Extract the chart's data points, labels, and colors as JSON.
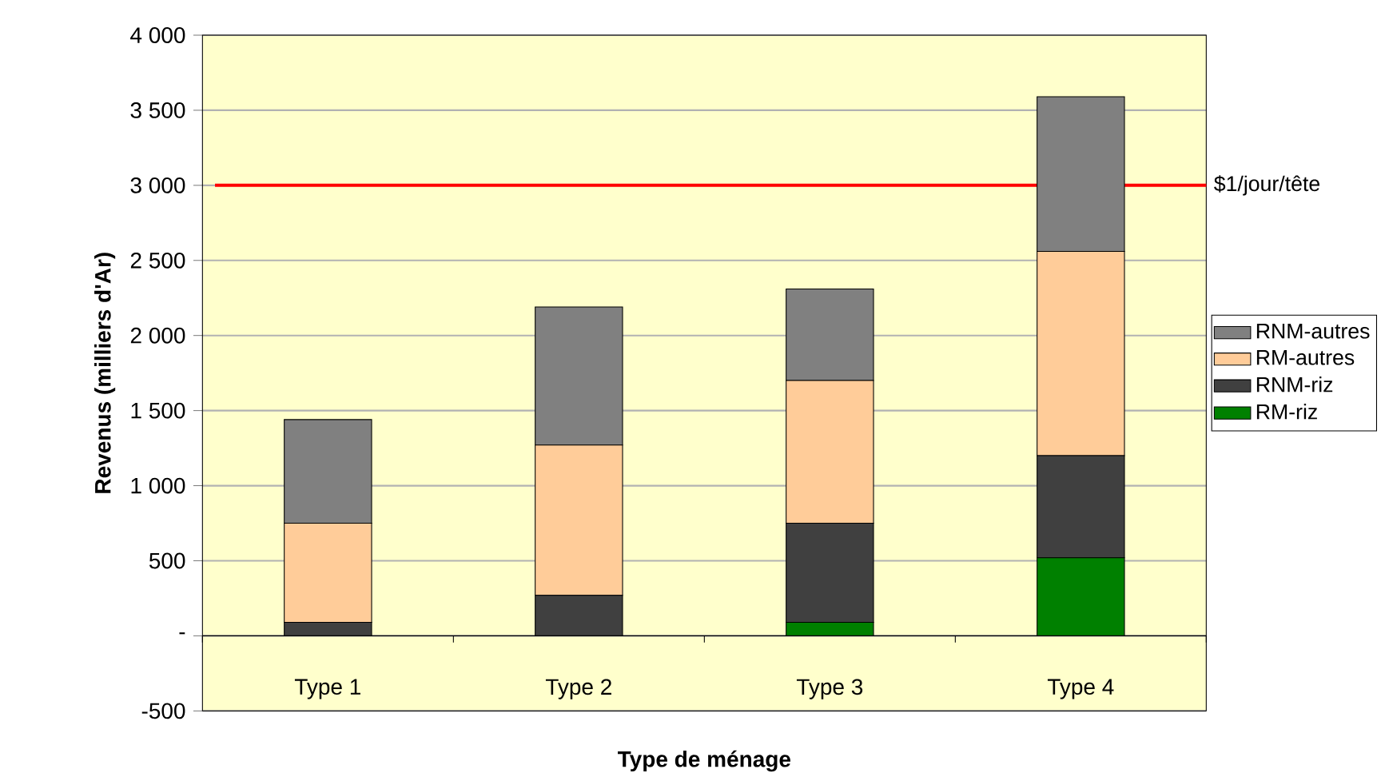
{
  "chart_data": {
    "type": "bar",
    "stacked": true,
    "xlabel": "Type de ménage",
    "ylabel": "Revenus (milliers d'Ar)",
    "categories": [
      "Type 1",
      "Type 2",
      "Type 3",
      "Type 4"
    ],
    "series": [
      {
        "name": "RM-riz",
        "color": "#008000",
        "values": [
          0,
          0,
          90,
          520
        ]
      },
      {
        "name": "RNM-riz",
        "color": "#404040",
        "values": [
          90,
          270,
          660,
          680
        ]
      },
      {
        "name": "RM-autres",
        "color": "#ffcc99",
        "values": [
          660,
          1000,
          950,
          1360
        ]
      },
      {
        "name": "RNM-autres",
        "color": "#808080",
        "values": [
          690,
          920,
          610,
          1030
        ]
      }
    ],
    "ylim": [
      -500,
      4000
    ],
    "yticks": [
      {
        "value": -500,
        "label": "-500"
      },
      {
        "value": 0,
        "label": "-"
      },
      {
        "value": 500,
        "label": "500"
      },
      {
        "value": 1000,
        "label": "1 000"
      },
      {
        "value": 1500,
        "label": "1 500"
      },
      {
        "value": 2000,
        "label": "2 000"
      },
      {
        "value": 2500,
        "label": "2 500"
      },
      {
        "value": 3000,
        "label": "3 000"
      },
      {
        "value": 3500,
        "label": "3 500"
      },
      {
        "value": 4000,
        "label": "4 000"
      }
    ],
    "ref_lines": [
      {
        "axis": "y",
        "value": 3000,
        "label": "$1/jour/tête",
        "color": "#ff0000"
      }
    ],
    "grid": "y",
    "legend": "right"
  }
}
